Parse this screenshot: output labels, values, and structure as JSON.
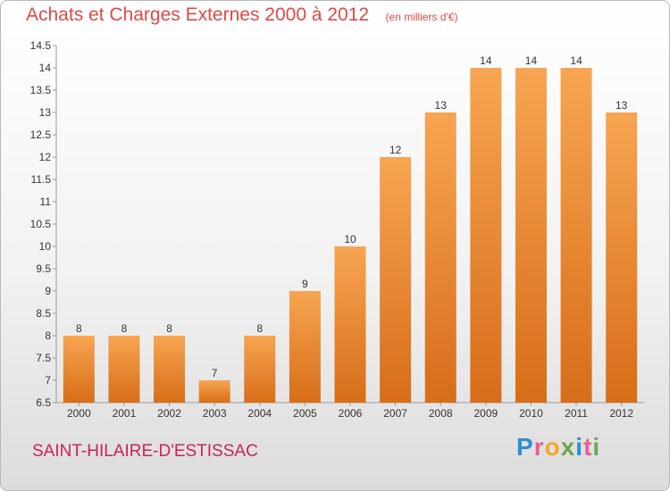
{
  "chart_data": {
    "type": "bar",
    "title": "Achats et Charges Externes 2000 à 2012",
    "unit_note": "(en milliers d'€)",
    "categories": [
      "2000",
      "2001",
      "2002",
      "2003",
      "2004",
      "2005",
      "2006",
      "2007",
      "2008",
      "2009",
      "2010",
      "2011",
      "2012"
    ],
    "values": [
      8,
      8,
      8,
      7,
      8,
      9,
      10,
      12,
      13,
      14,
      14,
      14,
      13
    ],
    "ylim": [
      6.5,
      14.5
    ],
    "yticks": [
      "6.5",
      "7",
      "7.5",
      "8",
      "8.5",
      "9",
      "9.5",
      "10",
      "10.5",
      "11",
      "11.5",
      "12",
      "12.5",
      "13",
      "13.5",
      "14",
      "14.5"
    ],
    "grid": false,
    "bar_color_top": "#f7a552",
    "bar_color_bottom": "#d76d18"
  },
  "location": "SAINT-HILAIRE-D'ESTISSAC",
  "brand": {
    "letters": [
      "P",
      "r",
      "o",
      "x",
      "i",
      "t",
      "i"
    ],
    "colors": [
      "#2a8fd6",
      "#e85f8c",
      "#f2a825",
      "#6aa84f",
      "#2a8fd6",
      "#e85f8c",
      "#6aa84f"
    ]
  }
}
